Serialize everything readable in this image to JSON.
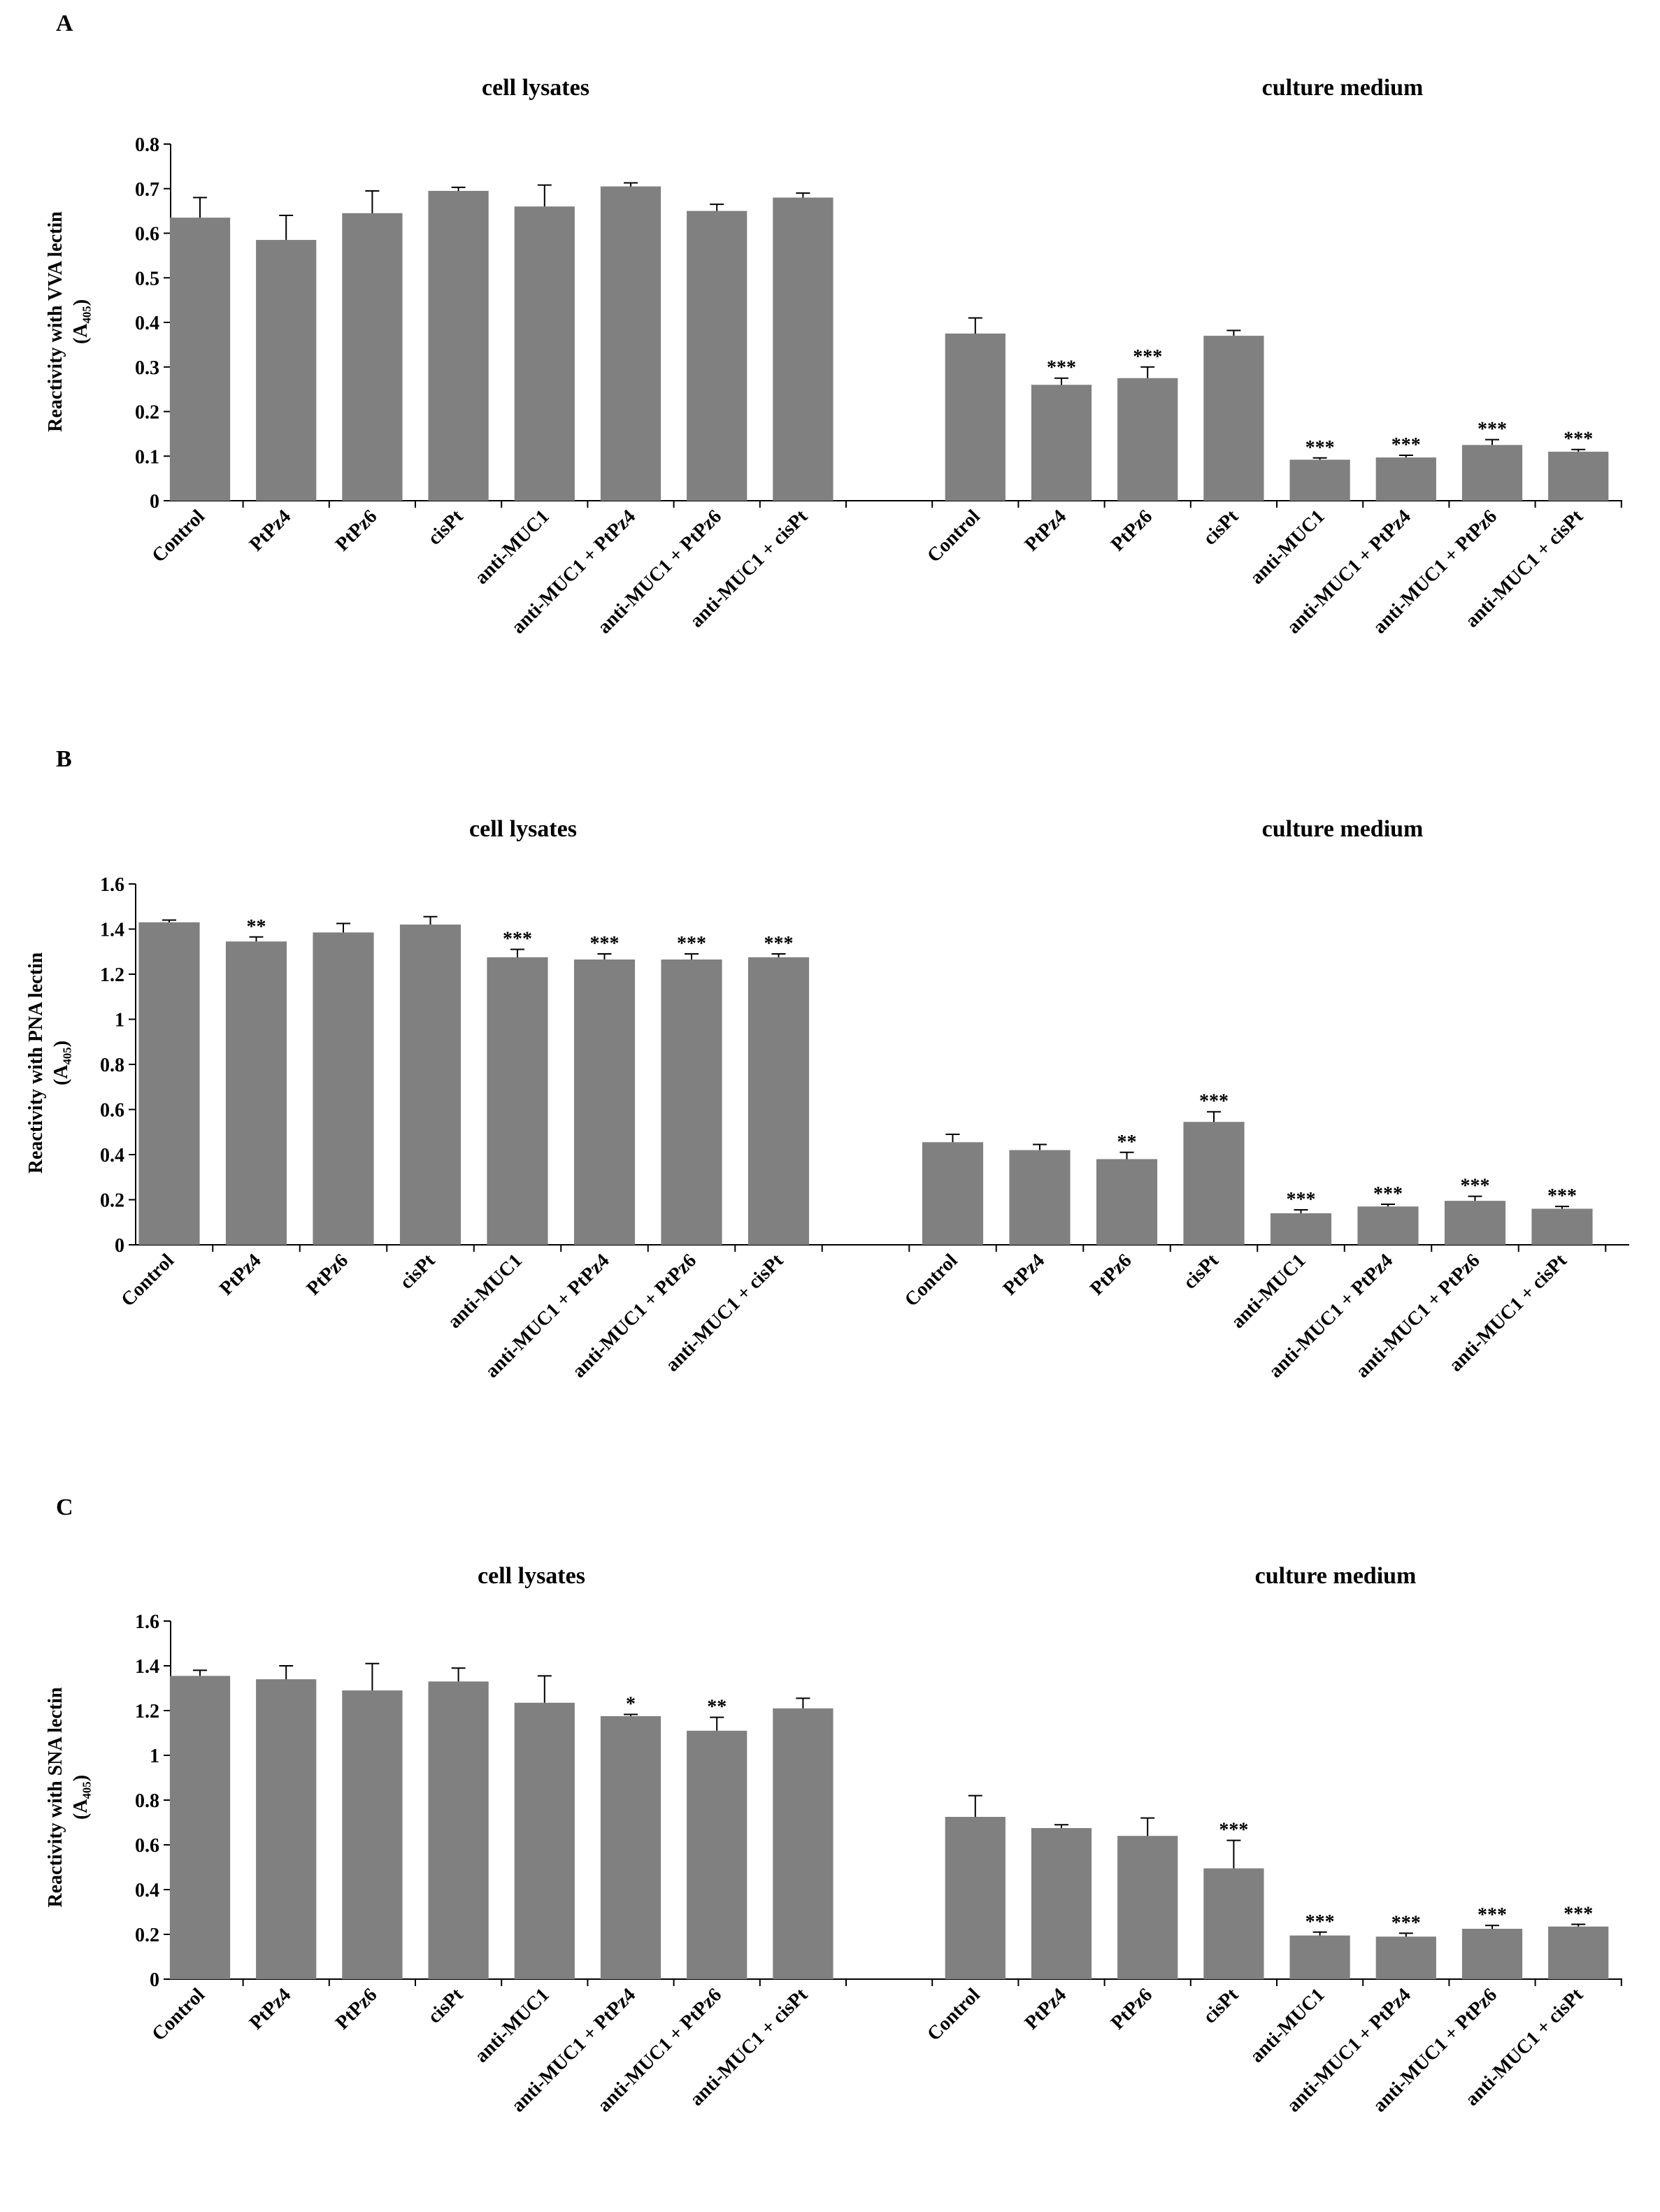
{
  "chart_data": [
    {
      "type": "bar",
      "panel_label": "A",
      "group_titles": [
        "cell lysates",
        "culture medium"
      ],
      "y_label": [
        "Reactivity with  VVA lectin",
        "(A₄₀₅)"
      ],
      "categories": [
        "Control",
        "PtPz4",
        "PtPz6",
        "cisPt",
        "anti-MUC1",
        "anti-MUC1 + PtPz4",
        "anti-MUC1 + PtPz6",
        "anti-MUC1 + cisPt",
        null,
        "Control",
        "PtPz4",
        "PtPz6",
        "cisPt",
        "anti-MUC1",
        "anti-MUC1 + PtPz4",
        "anti-MUC1 + PtPz6",
        "anti-MUC1 + cisPt"
      ],
      "values": [
        0.635,
        0.585,
        0.645,
        0.695,
        0.66,
        0.705,
        0.65,
        0.68,
        null,
        0.375,
        0.26,
        0.275,
        0.37,
        0.092,
        0.097,
        0.125,
        0.11
      ],
      "errors": [
        0.045,
        0.055,
        0.05,
        0.008,
        0.048,
        0.008,
        0.015,
        0.01,
        null,
        0.035,
        0.015,
        0.025,
        0.012,
        0.004,
        0.005,
        0.012,
        0.005
      ],
      "annotations": [
        null,
        null,
        null,
        null,
        null,
        null,
        null,
        null,
        null,
        null,
        "***",
        "***",
        null,
        "***",
        "***",
        "***",
        "***"
      ],
      "color": "#808080",
      "ylim": [
        0,
        0.8
      ],
      "yticks": [
        0,
        0.1,
        0.2,
        0.3,
        0.4,
        0.5,
        0.6,
        0.7,
        0.8
      ]
    },
    {
      "type": "bar",
      "panel_label": "B",
      "group_titles": [
        "cell lysates",
        "culture medium"
      ],
      "y_label": [
        "Reactivity  with  PNA lectin",
        "(A₄₀₅)"
      ],
      "categories": [
        "Control",
        "PtPz4",
        "PtPz6",
        "cisPt",
        "anti-MUC1",
        "anti-MUC1 + PtPz4",
        "anti-MUC1 + PtPz6",
        "anti-MUC1 + cisPt",
        null,
        "Control",
        "PtPz4",
        "PtPz6",
        "cisPt",
        "anti-MUC1",
        "anti-MUC1 + PtPz4",
        "anti-MUC1 + PtPz6",
        "anti-MUC1 + cisPt"
      ],
      "values": [
        1.43,
        1.345,
        1.385,
        1.42,
        1.275,
        1.265,
        1.265,
        1.275,
        null,
        0.455,
        0.42,
        0.38,
        0.545,
        0.14,
        0.17,
        0.195,
        0.16
      ],
      "errors": [
        0.01,
        0.02,
        0.04,
        0.035,
        0.035,
        0.025,
        0.025,
        0.015,
        null,
        0.035,
        0.025,
        0.03,
        0.045,
        0.015,
        0.01,
        0.02,
        0.01
      ],
      "annotations": [
        null,
        "**",
        null,
        null,
        "***",
        "***",
        "***",
        "***",
        null,
        null,
        null,
        "**",
        "***",
        "***",
        "***",
        "***",
        "***"
      ],
      "color": "#808080",
      "ylim": [
        0,
        1.6
      ],
      "yticks": [
        0,
        0.2,
        0.4,
        0.6,
        0.8,
        1,
        1.2,
        1.4,
        1.6
      ]
    },
    {
      "type": "bar",
      "panel_label": "C",
      "group_titles": [
        "cell lysates",
        "culture medium"
      ],
      "y_label": [
        "Reactivity with  SNA lectin",
        "(A₄₀₅)"
      ],
      "categories": [
        "Control",
        "PtPz4",
        "PtPz6",
        "cisPt",
        "anti-MUC1",
        "anti-MUC1 + PtPz4",
        "anti-MUC1 + PtPz6",
        "anti-MUC1 + cisPt",
        null,
        "Control",
        "PtPz4",
        "PtPz6",
        "cisPt",
        "anti-MUC1",
        "anti-MUC1 + PtPz4",
        "anti-MUC1 + PtPz6",
        "anti-MUC1 + cisPt"
      ],
      "values": [
        1.355,
        1.34,
        1.29,
        1.33,
        1.235,
        1.175,
        1.11,
        1.21,
        null,
        0.725,
        0.675,
        0.64,
        0.495,
        0.195,
        0.19,
        0.225,
        0.235
      ],
      "errors": [
        0.025,
        0.06,
        0.12,
        0.06,
        0.12,
        0.008,
        0.06,
        0.045,
        null,
        0.095,
        0.015,
        0.08,
        0.125,
        0.015,
        0.015,
        0.015,
        0.01
      ],
      "annotations": [
        null,
        null,
        null,
        null,
        null,
        "*",
        "**",
        null,
        null,
        null,
        null,
        null,
        "***",
        "***",
        "***",
        "***",
        "***"
      ],
      "color": "#808080",
      "ylim": [
        0,
        1.6
      ],
      "yticks": [
        0,
        0.2,
        0.4,
        0.6,
        0.8,
        1,
        1.2,
        1.4,
        1.6
      ]
    }
  ]
}
